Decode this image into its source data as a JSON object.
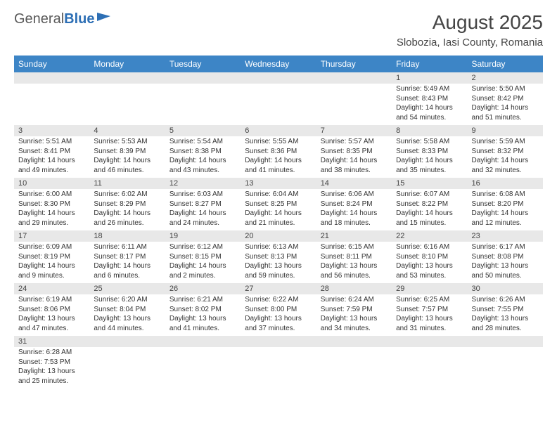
{
  "brand": {
    "part1": "General",
    "part2": "Blue"
  },
  "title": "August 2025",
  "location": "Slobozia, Iasi County, Romania",
  "headers": [
    "Sunday",
    "Monday",
    "Tuesday",
    "Wednesday",
    "Thursday",
    "Friday",
    "Saturday"
  ],
  "colors": {
    "header_bg": "#3d85c6",
    "header_fg": "#ffffff",
    "daynum_bg": "#e8e8e8",
    "text": "#333333",
    "logo_gray": "#5a5a5a",
    "logo_blue": "#2d6fb5"
  },
  "weeks": [
    [
      null,
      null,
      null,
      null,
      null,
      {
        "n": "1",
        "sr": "Sunrise: 5:49 AM",
        "ss": "Sunset: 8:43 PM",
        "d1": "Daylight: 14 hours",
        "d2": "and 54 minutes."
      },
      {
        "n": "2",
        "sr": "Sunrise: 5:50 AM",
        "ss": "Sunset: 8:42 PM",
        "d1": "Daylight: 14 hours",
        "d2": "and 51 minutes."
      }
    ],
    [
      {
        "n": "3",
        "sr": "Sunrise: 5:51 AM",
        "ss": "Sunset: 8:41 PM",
        "d1": "Daylight: 14 hours",
        "d2": "and 49 minutes."
      },
      {
        "n": "4",
        "sr": "Sunrise: 5:53 AM",
        "ss": "Sunset: 8:39 PM",
        "d1": "Daylight: 14 hours",
        "d2": "and 46 minutes."
      },
      {
        "n": "5",
        "sr": "Sunrise: 5:54 AM",
        "ss": "Sunset: 8:38 PM",
        "d1": "Daylight: 14 hours",
        "d2": "and 43 minutes."
      },
      {
        "n": "6",
        "sr": "Sunrise: 5:55 AM",
        "ss": "Sunset: 8:36 PM",
        "d1": "Daylight: 14 hours",
        "d2": "and 41 minutes."
      },
      {
        "n": "7",
        "sr": "Sunrise: 5:57 AM",
        "ss": "Sunset: 8:35 PM",
        "d1": "Daylight: 14 hours",
        "d2": "and 38 minutes."
      },
      {
        "n": "8",
        "sr": "Sunrise: 5:58 AM",
        "ss": "Sunset: 8:33 PM",
        "d1": "Daylight: 14 hours",
        "d2": "and 35 minutes."
      },
      {
        "n": "9",
        "sr": "Sunrise: 5:59 AM",
        "ss": "Sunset: 8:32 PM",
        "d1": "Daylight: 14 hours",
        "d2": "and 32 minutes."
      }
    ],
    [
      {
        "n": "10",
        "sr": "Sunrise: 6:00 AM",
        "ss": "Sunset: 8:30 PM",
        "d1": "Daylight: 14 hours",
        "d2": "and 29 minutes."
      },
      {
        "n": "11",
        "sr": "Sunrise: 6:02 AM",
        "ss": "Sunset: 8:29 PM",
        "d1": "Daylight: 14 hours",
        "d2": "and 26 minutes."
      },
      {
        "n": "12",
        "sr": "Sunrise: 6:03 AM",
        "ss": "Sunset: 8:27 PM",
        "d1": "Daylight: 14 hours",
        "d2": "and 24 minutes."
      },
      {
        "n": "13",
        "sr": "Sunrise: 6:04 AM",
        "ss": "Sunset: 8:25 PM",
        "d1": "Daylight: 14 hours",
        "d2": "and 21 minutes."
      },
      {
        "n": "14",
        "sr": "Sunrise: 6:06 AM",
        "ss": "Sunset: 8:24 PM",
        "d1": "Daylight: 14 hours",
        "d2": "and 18 minutes."
      },
      {
        "n": "15",
        "sr": "Sunrise: 6:07 AM",
        "ss": "Sunset: 8:22 PM",
        "d1": "Daylight: 14 hours",
        "d2": "and 15 minutes."
      },
      {
        "n": "16",
        "sr": "Sunrise: 6:08 AM",
        "ss": "Sunset: 8:20 PM",
        "d1": "Daylight: 14 hours",
        "d2": "and 12 minutes."
      }
    ],
    [
      {
        "n": "17",
        "sr": "Sunrise: 6:09 AM",
        "ss": "Sunset: 8:19 PM",
        "d1": "Daylight: 14 hours",
        "d2": "and 9 minutes."
      },
      {
        "n": "18",
        "sr": "Sunrise: 6:11 AM",
        "ss": "Sunset: 8:17 PM",
        "d1": "Daylight: 14 hours",
        "d2": "and 6 minutes."
      },
      {
        "n": "19",
        "sr": "Sunrise: 6:12 AM",
        "ss": "Sunset: 8:15 PM",
        "d1": "Daylight: 14 hours",
        "d2": "and 2 minutes."
      },
      {
        "n": "20",
        "sr": "Sunrise: 6:13 AM",
        "ss": "Sunset: 8:13 PM",
        "d1": "Daylight: 13 hours",
        "d2": "and 59 minutes."
      },
      {
        "n": "21",
        "sr": "Sunrise: 6:15 AM",
        "ss": "Sunset: 8:11 PM",
        "d1": "Daylight: 13 hours",
        "d2": "and 56 minutes."
      },
      {
        "n": "22",
        "sr": "Sunrise: 6:16 AM",
        "ss": "Sunset: 8:10 PM",
        "d1": "Daylight: 13 hours",
        "d2": "and 53 minutes."
      },
      {
        "n": "23",
        "sr": "Sunrise: 6:17 AM",
        "ss": "Sunset: 8:08 PM",
        "d1": "Daylight: 13 hours",
        "d2": "and 50 minutes."
      }
    ],
    [
      {
        "n": "24",
        "sr": "Sunrise: 6:19 AM",
        "ss": "Sunset: 8:06 PM",
        "d1": "Daylight: 13 hours",
        "d2": "and 47 minutes."
      },
      {
        "n": "25",
        "sr": "Sunrise: 6:20 AM",
        "ss": "Sunset: 8:04 PM",
        "d1": "Daylight: 13 hours",
        "d2": "and 44 minutes."
      },
      {
        "n": "26",
        "sr": "Sunrise: 6:21 AM",
        "ss": "Sunset: 8:02 PM",
        "d1": "Daylight: 13 hours",
        "d2": "and 41 minutes."
      },
      {
        "n": "27",
        "sr": "Sunrise: 6:22 AM",
        "ss": "Sunset: 8:00 PM",
        "d1": "Daylight: 13 hours",
        "d2": "and 37 minutes."
      },
      {
        "n": "28",
        "sr": "Sunrise: 6:24 AM",
        "ss": "Sunset: 7:59 PM",
        "d1": "Daylight: 13 hours",
        "d2": "and 34 minutes."
      },
      {
        "n": "29",
        "sr": "Sunrise: 6:25 AM",
        "ss": "Sunset: 7:57 PM",
        "d1": "Daylight: 13 hours",
        "d2": "and 31 minutes."
      },
      {
        "n": "30",
        "sr": "Sunrise: 6:26 AM",
        "ss": "Sunset: 7:55 PM",
        "d1": "Daylight: 13 hours",
        "d2": "and 28 minutes."
      }
    ],
    [
      {
        "n": "31",
        "sr": "Sunrise: 6:28 AM",
        "ss": "Sunset: 7:53 PM",
        "d1": "Daylight: 13 hours",
        "d2": "and 25 minutes."
      },
      null,
      null,
      null,
      null,
      null,
      null
    ]
  ]
}
